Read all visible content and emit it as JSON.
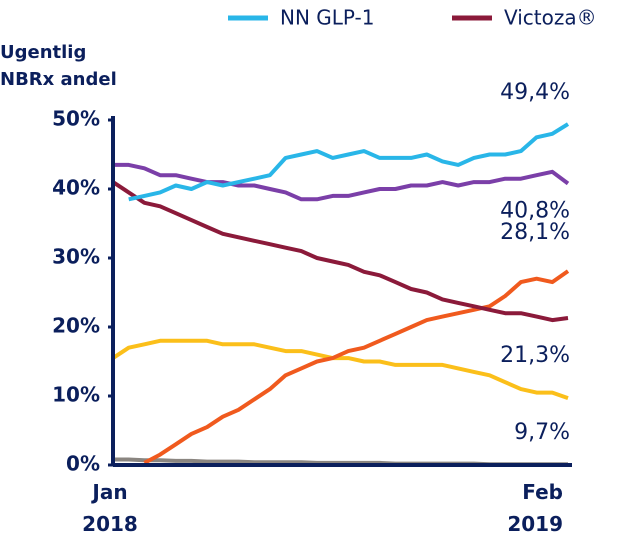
{
  "chart_data": {
    "type": "line",
    "ylabel": [
      "Ugentlig",
      "NBRx andel"
    ],
    "categories": [
      "Jan 2018",
      null,
      null,
      null,
      null,
      null,
      null,
      null,
      null,
      null,
      null,
      null,
      null,
      null,
      null,
      null,
      null,
      null,
      null,
      null,
      null,
      null,
      null,
      null,
      null,
      null,
      null,
      null,
      null,
      "Feb 2019"
    ],
    "ylim": [
      0,
      50
    ],
    "yticks": [
      {
        "value": 0,
        "label": "0%"
      },
      {
        "value": 10,
        "label": "10%"
      },
      {
        "value": 20,
        "label": "20%"
      },
      {
        "value": 30,
        "label": "30%"
      },
      {
        "value": 40,
        "label": "40%"
      },
      {
        "value": 50,
        "label": "50%"
      }
    ],
    "grid": false,
    "legend": "top",
    "series": [
      {
        "color": "#8a8580",
        "values": [
          0.8,
          0.8,
          0.7,
          0.7,
          0.6,
          0.6,
          0.5,
          0.5,
          0.5,
          0.4,
          0.4,
          0.4,
          0.4,
          0.3,
          0.3,
          0.3,
          0.3,
          0.3,
          0.2,
          0.2,
          0.2,
          0.2,
          0.2,
          0.2,
          0.1,
          0.1,
          0.1,
          0.1,
          0.1,
          0.1
        ]
      },
      {
        "color": "#fbbf1a",
        "values": [
          15.5,
          17,
          17.5,
          18,
          18,
          18,
          18,
          17.5,
          17.5,
          17.5,
          17,
          16.5,
          16.5,
          16,
          15.5,
          15.5,
          15,
          15,
          14.5,
          14.5,
          14.5,
          14.5,
          14,
          13.5,
          13,
          12,
          11,
          10.5,
          10.5,
          9.7
        ],
        "value_labels": [
          null,
          null,
          null,
          null,
          null,
          null,
          null,
          null,
          null,
          null,
          null,
          null,
          null,
          null,
          null,
          null,
          null,
          null,
          null,
          null,
          null,
          null,
          null,
          null,
          null,
          null,
          null,
          null,
          null,
          "9,7%"
        ]
      },
      {
        "color": "#f05a1e",
        "values": [
          null,
          null,
          0.3,
          1.5,
          3,
          4.5,
          5.5,
          7,
          8,
          9.5,
          11,
          13,
          14,
          15,
          15.5,
          16.5,
          17,
          18,
          19,
          20,
          21,
          21.5,
          22,
          22.5,
          23,
          24.5,
          26.5,
          27,
          26.5,
          28.1
        ],
        "value_labels": [
          null,
          null,
          null,
          null,
          null,
          null,
          null,
          null,
          null,
          null,
          null,
          null,
          null,
          null,
          null,
          null,
          null,
          null,
          null,
          null,
          null,
          null,
          null,
          null,
          null,
          null,
          null,
          null,
          null,
          "28,1%"
        ]
      },
      {
        "color": "#7b3fa8",
        "values": [
          43.5,
          43.5,
          43,
          42,
          42,
          41.5,
          41,
          41,
          40.5,
          40.5,
          40,
          39.5,
          38.5,
          38.5,
          39,
          39,
          39.5,
          40,
          40,
          40.5,
          40.5,
          41,
          40.5,
          41,
          41,
          41.5,
          41.5,
          42,
          42.5,
          40.8
        ],
        "value_labels": [
          null,
          null,
          null,
          null,
          null,
          null,
          null,
          null,
          null,
          null,
          null,
          null,
          null,
          null,
          null,
          null,
          null,
          null,
          null,
          null,
          null,
          null,
          null,
          null,
          null,
          null,
          null,
          null,
          null,
          "40,8%"
        ]
      },
      {
        "name": "Victoza®",
        "color": "#8b1a3a",
        "values": [
          41,
          39.5,
          38,
          37.5,
          36.5,
          35.5,
          34.5,
          33.5,
          33,
          32.5,
          32,
          31.5,
          31,
          30,
          29.5,
          29,
          28,
          27.5,
          26.5,
          25.5,
          25,
          24,
          23.5,
          23,
          22.5,
          22,
          22,
          21.5,
          21,
          21.3
        ],
        "value_labels": [
          null,
          null,
          null,
          null,
          null,
          null,
          null,
          null,
          null,
          null,
          null,
          null,
          null,
          null,
          null,
          null,
          null,
          null,
          null,
          null,
          null,
          null,
          null,
          null,
          null,
          null,
          null,
          null,
          null,
          "21,3%"
        ]
      },
      {
        "name": "NN GLP-1",
        "color": "#29b6e8",
        "values": [
          null,
          38.5,
          39,
          39.5,
          40.5,
          40,
          41,
          40.5,
          41,
          41.5,
          42,
          44.5,
          45,
          45.5,
          44.5,
          45,
          45.5,
          44.5,
          44.5,
          44.5,
          45,
          44,
          43.5,
          44.5,
          45,
          45,
          45.5,
          47.5,
          48,
          49.4
        ],
        "value_labels": [
          null,
          null,
          null,
          null,
          null,
          null,
          null,
          null,
          null,
          null,
          null,
          null,
          null,
          null,
          null,
          null,
          null,
          null,
          null,
          null,
          null,
          null,
          null,
          null,
          null,
          null,
          null,
          null,
          null,
          "49,4%"
        ]
      }
    ]
  }
}
